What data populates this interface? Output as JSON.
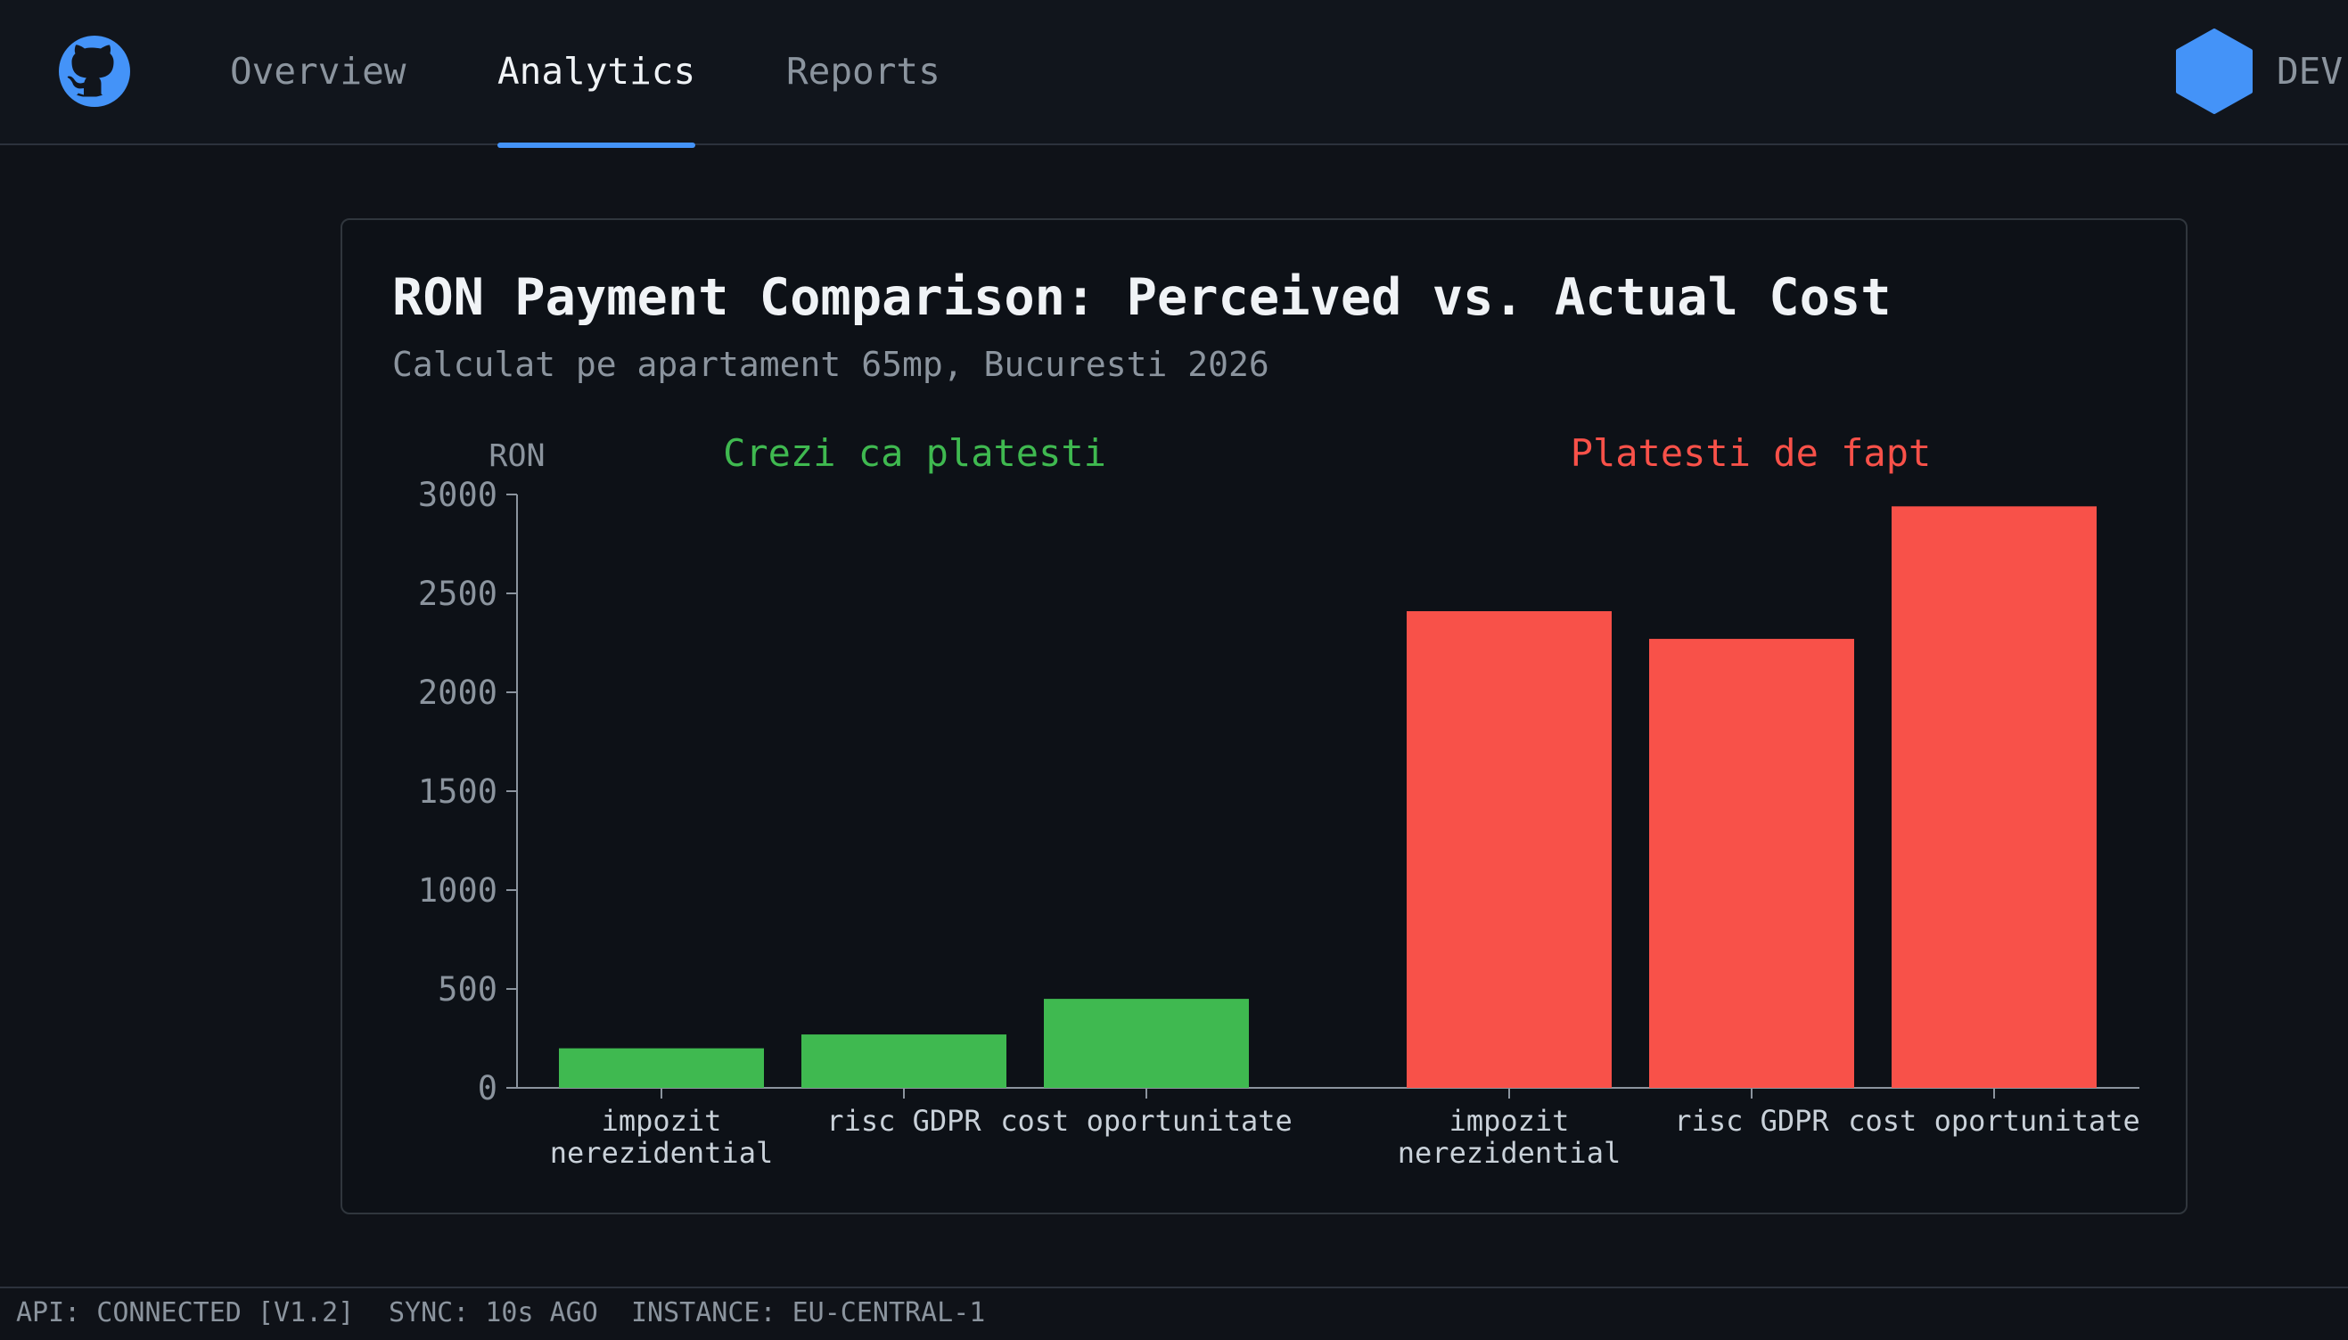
{
  "nav": {
    "logo_icon": "github-icon",
    "tabs": [
      {
        "label": "Overview",
        "active": false
      },
      {
        "label": "Analytics",
        "active": true
      },
      {
        "label": "Reports",
        "active": false
      }
    ],
    "profile_icon": "hexagon-avatar-icon",
    "profile_label": "DEV"
  },
  "card": {
    "title": "RON Payment Comparison: Perceived vs. Actual Cost",
    "subtitle": "Calculat pe apartament 65mp, Bucuresti 2026"
  },
  "chart_data": {
    "type": "bar",
    "ylabel": "RON",
    "ylim": [
      0,
      3000
    ],
    "yticks": [
      "0",
      "500",
      "1000",
      "1500",
      "2000",
      "2500",
      "3000"
    ],
    "grid": false,
    "groups": [
      {
        "label": "Crezi ca platesti",
        "color": "#3fb950",
        "categories": [
          [
            "impozit",
            "nerezidential"
          ],
          [
            "risc GDPR"
          ],
          [
            "cost oportunitate"
          ]
        ],
        "values": [
          200,
          270,
          450
        ]
      },
      {
        "label": "Platesti de fapt",
        "color": "#f85149",
        "categories": [
          [
            "impozit",
            "nerezidential"
          ],
          [
            "risc GDPR"
          ],
          [
            "cost oportunitate"
          ]
        ],
        "values": [
          2410,
          2270,
          2940
        ]
      }
    ]
  },
  "colors": {
    "accent": "#4493f8",
    "perceived": "#3fb950",
    "actual": "#f85149",
    "background": "#0f1218"
  },
  "statusbar": {
    "api": "API: CONNECTED [V1.2]",
    "sync": "SYNC: 10s AGO",
    "instance": "INSTANCE: EU-CENTRAL-1"
  }
}
